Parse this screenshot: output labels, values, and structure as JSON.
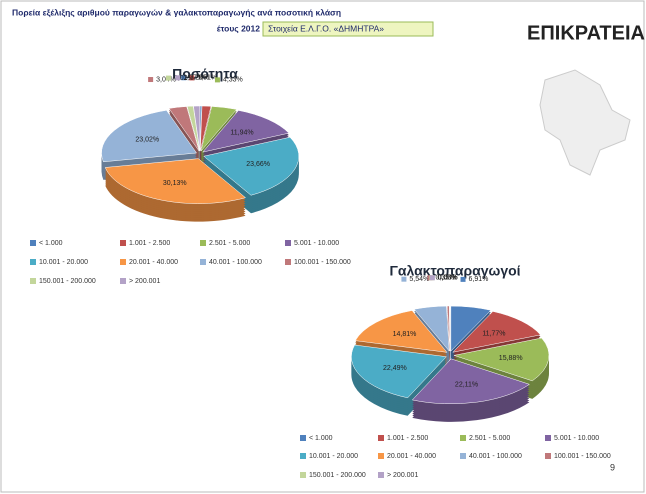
{
  "header": {
    "title_line1": "Πορεία εξέλιξης αριθμού παραγωγών & γαλακτοπαραγωγής ανά ποσοτική κλάση",
    "title_line2": "έτους 2012",
    "source": "Στοιχεία Ε.Λ.Γ.Ο. «ΔΗΜΗΤΡΑ»",
    "region": "ΕΠΙΚΡΑΤΕΙΑ",
    "page_number": "9"
  },
  "chart_data": [
    {
      "type": "pie",
      "title": "Ποσότητα",
      "categories": [
        "< 1.000",
        "1.001 - 2.500",
        "2.501 - 5.000",
        "5.001 - 10.000",
        "10.001 - 20.000",
        "20.001 - 40.000",
        "40.001 - 100.000",
        "100.001 - 150.000",
        "150.001 - 200.000",
        "> 200.001"
      ],
      "values": [
        0.29,
        1.51,
        4.33,
        11.94,
        23.66,
        30.13,
        23.02,
        3.04,
        1.02,
        1.07
      ],
      "value_labels": [
        "0,29%",
        "1,51%",
        "4,33%",
        "11,94%",
        "23,66%",
        "30,13%",
        "23,02%",
        "3,04%",
        "1,02%",
        "1,07%"
      ],
      "colors": [
        "#4f81bd",
        "#c0504d",
        "#9bbb59",
        "#8064a2",
        "#4bacc6",
        "#f79646",
        "#95b3d7",
        "#c0787a",
        "#c3d69b",
        "#b3a2c7"
      ],
      "legend": "bottom"
    },
    {
      "type": "pie",
      "title": "Γαλακτοπαραγωγοί",
      "categories": [
        "< 1.000",
        "1.001 - 2.500",
        "2.501 - 5.000",
        "5.001 - 10.000",
        "10.001 - 20.000",
        "20.001 - 40.000",
        "40.001 - 100.000",
        "100.001 - 150.000",
        "150.001 - 200.000",
        "> 200.001"
      ],
      "values": [
        6.91,
        11.77,
        15.88,
        22.11,
        22.49,
        14.81,
        5.54,
        0.35,
        0.08,
        0.03
      ],
      "value_labels": [
        "6,91%",
        "11,77%",
        "15,88%",
        "22,11%",
        "22,49%",
        "14,81%",
        "5,54%",
        "0,35%",
        "0,08%",
        "0,03%"
      ],
      "colors": [
        "#4f81bd",
        "#c0504d",
        "#9bbb59",
        "#8064a2",
        "#4bacc6",
        "#f79646",
        "#95b3d7",
        "#c0787a",
        "#c3d69b",
        "#b3a2c7"
      ],
      "legend": "bottom"
    }
  ]
}
